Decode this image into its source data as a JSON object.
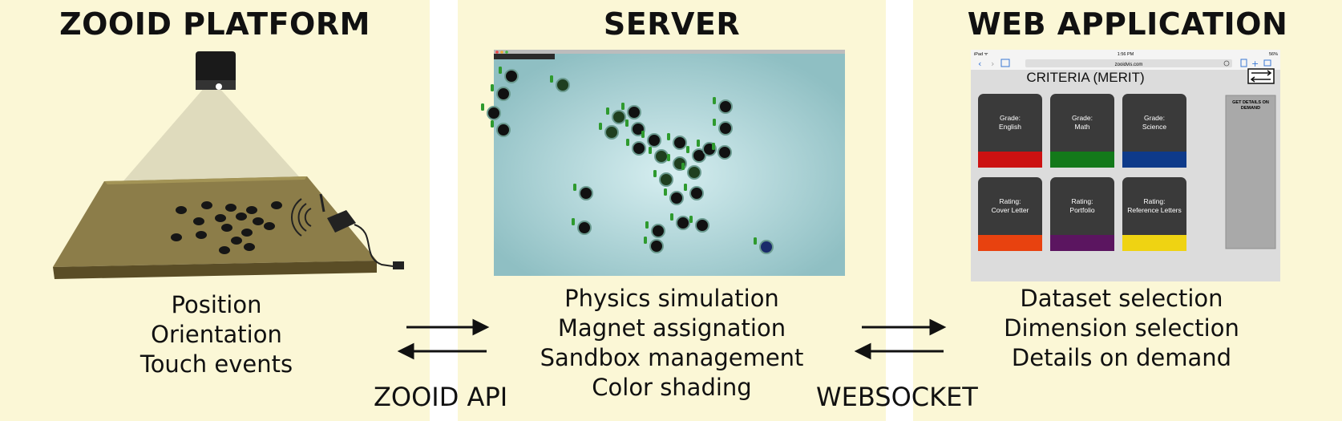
{
  "panels": {
    "platform": {
      "title": "ZOOID PLATFORM",
      "features": [
        "Position",
        "Orientation",
        "Touch events"
      ]
    },
    "server": {
      "title": "SERVER",
      "features": [
        "Physics simulation",
        "Magnet assignation",
        "Sandbox management",
        "Color shading"
      ]
    },
    "web_app": {
      "title": "WEB APPLICATION",
      "features": [
        "Dataset selection",
        "Dimension selection",
        "Details on demand"
      ]
    }
  },
  "connections": {
    "left": "ZOOID API",
    "right": "WEBSOCKET"
  },
  "tablet": {
    "status_left": "iPad ᯤ",
    "time": "1:56 PM",
    "battery": "56%",
    "url": "zooidvis.com",
    "page_title": "CRITERIA (MERIT)",
    "side_button": "GET DETAILS ON DEMAND",
    "tiles": [
      {
        "line1": "Grade:",
        "line2": "English",
        "color": "#cc1111"
      },
      {
        "line1": "Grade:",
        "line2": "Math",
        "color": "#13791a"
      },
      {
        "line1": "Grade:",
        "line2": "Science",
        "color": "#0e3a8a"
      },
      {
        "line1": "Rating:",
        "line2": "Cover Letter",
        "color": "#e8420f"
      },
      {
        "line1": "Rating:",
        "line2": "Portfolio",
        "color": "#5b1560"
      },
      {
        "line1": "Rating:",
        "line2": "Reference Letters",
        "color": "#efd312"
      }
    ]
  },
  "colors": {
    "panel_bg": "#fbf7d6",
    "server_bg": "#a9d4d7",
    "table_top": "#8c7d49"
  }
}
